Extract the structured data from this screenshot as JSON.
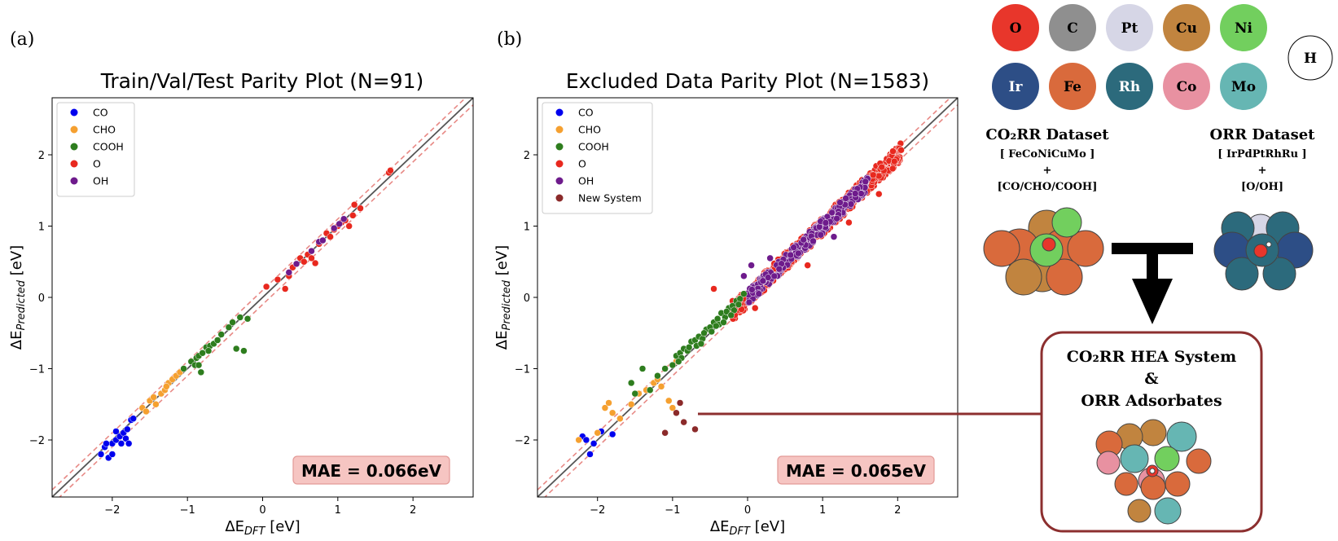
{
  "panels": [
    {
      "label": "(a)"
    },
    {
      "label": "(b)"
    }
  ],
  "chart_data": [
    {
      "type": "scatter",
      "title": "Train/Val/Test Parity Plot (N=91)",
      "xlabel_main": "ΔE",
      "xlabel_sub": "DFT",
      "xlabel_unit": " [eV]",
      "ylabel_main": "ΔE",
      "ylabel_sub": "Predicted",
      "ylabel_unit": " [eV]",
      "xlim": [
        -2.8,
        2.8
      ],
      "ylim": [
        -2.8,
        2.8
      ],
      "xticks": [
        -2,
        -1,
        0,
        1,
        2
      ],
      "yticks": [
        -2,
        -1,
        0,
        1,
        2
      ],
      "tick_labels": [
        "−2",
        "−1",
        "0",
        "1",
        "2"
      ],
      "parity_band": 0.1,
      "mae_label": "MAE = 0.066eV",
      "series": [
        {
          "name": "CO",
          "color": "#0000ee",
          "points": [
            [
              -2.15,
              -2.2
            ],
            [
              -2.1,
              -2.1
            ],
            [
              -2.05,
              -2.25
            ],
            [
              -2.0,
              -2.05
            ],
            [
              -2.0,
              -2.2
            ],
            [
              -1.95,
              -2.0
            ],
            [
              -1.9,
              -1.95
            ],
            [
              -1.88,
              -2.05
            ],
            [
              -1.85,
              -1.9
            ],
            [
              -1.82,
              -1.98
            ],
            [
              -1.8,
              -1.85
            ],
            [
              -1.78,
              -2.05
            ],
            [
              -1.75,
              -1.72
            ],
            [
              -1.72,
              -1.7
            ],
            [
              -2.08,
              -2.05
            ],
            [
              -1.95,
              -1.88
            ]
          ]
        },
        {
          "name": "CHO",
          "color": "#f5a030",
          "points": [
            [
              -1.6,
              -1.55
            ],
            [
              -1.55,
              -1.6
            ],
            [
              -1.5,
              -1.45
            ],
            [
              -1.45,
              -1.4
            ],
            [
              -1.42,
              -1.5
            ],
            [
              -1.35,
              -1.35
            ],
            [
              -1.3,
              -1.3
            ],
            [
              -1.25,
              -1.2
            ],
            [
              -1.2,
              -1.15
            ],
            [
              -1.15,
              -1.1
            ],
            [
              -1.1,
              -1.05
            ],
            [
              -1.28,
              -1.25
            ]
          ]
        },
        {
          "name": "COOH",
          "color": "#2e7d1e",
          "points": [
            [
              -1.05,
              -1.0
            ],
            [
              -0.95,
              -0.9
            ],
            [
              -0.9,
              -0.95
            ],
            [
              -0.88,
              -0.85
            ],
            [
              -0.85,
              -0.82
            ],
            [
              -0.82,
              -1.05
            ],
            [
              -0.8,
              -0.78
            ],
            [
              -0.75,
              -0.7
            ],
            [
              -0.7,
              -0.68
            ],
            [
              -0.65,
              -0.65
            ],
            [
              -0.6,
              -0.6
            ],
            [
              -0.55,
              -0.52
            ],
            [
              -0.45,
              -0.42
            ],
            [
              -0.4,
              -0.35
            ],
            [
              -0.35,
              -0.72
            ],
            [
              -0.3,
              -0.28
            ],
            [
              -0.25,
              -0.75
            ],
            [
              -0.2,
              -0.3
            ],
            [
              -0.85,
              -0.95
            ],
            [
              -0.72,
              -0.75
            ]
          ]
        },
        {
          "name": "O",
          "color": "#e8281e",
          "points": [
            [
              0.05,
              0.15
            ],
            [
              0.2,
              0.25
            ],
            [
              0.3,
              0.12
            ],
            [
              0.35,
              0.3
            ],
            [
              0.4,
              0.42
            ],
            [
              0.5,
              0.55
            ],
            [
              0.55,
              0.5
            ],
            [
              0.6,
              0.6
            ],
            [
              0.7,
              0.48
            ],
            [
              0.75,
              0.75
            ],
            [
              0.85,
              0.9
            ],
            [
              0.9,
              0.85
            ],
            [
              0.95,
              0.95
            ],
            [
              1.0,
              1.0
            ],
            [
              1.05,
              1.05
            ],
            [
              1.1,
              1.08
            ],
            [
              1.15,
              1.0
            ],
            [
              1.2,
              1.15
            ],
            [
              1.3,
              1.25
            ],
            [
              1.68,
              1.75
            ],
            [
              1.7,
              1.78
            ],
            [
              0.65,
              0.55
            ],
            [
              1.22,
              1.3
            ]
          ]
        },
        {
          "name": "OH",
          "color": "#6e1b8c",
          "points": [
            [
              0.35,
              0.35
            ],
            [
              0.45,
              0.47
            ],
            [
              0.65,
              0.65
            ],
            [
              0.75,
              0.78
            ],
            [
              0.8,
              0.8
            ],
            [
              0.95,
              0.97
            ],
            [
              1.02,
              1.03
            ],
            [
              1.08,
              1.1
            ]
          ]
        }
      ]
    },
    {
      "type": "scatter",
      "title": "Excluded Data Parity Plot (N=1583)",
      "xlabel_main": "ΔE",
      "xlabel_sub": "DFT",
      "xlabel_unit": " [eV]",
      "ylabel_main": "ΔE",
      "ylabel_sub": "Predicted",
      "ylabel_unit": " [eV]",
      "xlim": [
        -2.8,
        2.8
      ],
      "ylim": [
        -2.8,
        2.8
      ],
      "xticks": [
        -2,
        -1,
        0,
        1,
        2
      ],
      "yticks": [
        -2,
        -1,
        0,
        1,
        2
      ],
      "tick_labels": [
        "−2",
        "−1",
        "0",
        "1",
        "2"
      ],
      "parity_band": 0.1,
      "mae_label": "MAE = 0.065eV",
      "series": [
        {
          "name": "CO",
          "color": "#0000ee",
          "points": [
            [
              -2.2,
              -1.95
            ],
            [
              -2.1,
              -2.2
            ],
            [
              -2.05,
              -2.05
            ],
            [
              -1.95,
              -1.88
            ],
            [
              -1.8,
              -1.92
            ],
            [
              -2.15,
              -2.0
            ]
          ]
        },
        {
          "name": "CHO",
          "color": "#f5a030",
          "points": [
            [
              -2.25,
              -2.0
            ],
            [
              -2.0,
              -1.9
            ],
            [
              -1.9,
              -1.55
            ],
            [
              -1.85,
              -1.48
            ],
            [
              -1.8,
              -1.62
            ],
            [
              -1.7,
              -1.7
            ],
            [
              -1.55,
              -1.5
            ],
            [
              -1.45,
              -1.35
            ],
            [
              -1.35,
              -1.3
            ],
            [
              -1.25,
              -1.2
            ],
            [
              -1.2,
              -1.15
            ],
            [
              -1.15,
              -1.25
            ],
            [
              -1.05,
              -1.45
            ],
            [
              -1.0,
              -1.55
            ],
            [
              -0.95,
              -0.9
            ]
          ]
        },
        {
          "name": "COOH",
          "color": "#2e7d1e",
          "points": [
            [
              -1.55,
              -1.2
            ],
            [
              -1.5,
              -1.35
            ],
            [
              -1.4,
              -1.0
            ],
            [
              -1.3,
              -1.3
            ],
            [
              -1.2,
              -1.1
            ],
            [
              -1.1,
              -1.0
            ],
            [
              -1.0,
              -0.95
            ],
            [
              -0.95,
              -0.82
            ],
            [
              -0.9,
              -0.78
            ],
            [
              -0.85,
              -0.72
            ],
            [
              -0.8,
              -0.75
            ],
            [
              -0.75,
              -0.62
            ],
            [
              -0.7,
              -0.6
            ],
            [
              -0.65,
              -0.55
            ],
            [
              -0.6,
              -0.58
            ],
            [
              -0.55,
              -0.45
            ],
            [
              -0.5,
              -0.42
            ],
            [
              -0.45,
              -0.35
            ],
            [
              -0.4,
              -0.3
            ],
            [
              -0.35,
              -0.22
            ],
            [
              -0.3,
              -0.28
            ],
            [
              -0.25,
              -0.15
            ],
            [
              -0.2,
              -0.12
            ],
            [
              -0.15,
              -0.05
            ],
            [
              -0.1,
              -0.02
            ],
            [
              -0.05,
              0.05
            ],
            [
              -0.88,
              -0.85
            ],
            [
              -0.78,
              -0.7
            ],
            [
              -0.68,
              -0.68
            ],
            [
              -0.58,
              -0.5
            ],
            [
              -0.48,
              -0.48
            ],
            [
              -0.38,
              -0.38
            ],
            [
              -0.28,
              -0.2
            ],
            [
              -0.18,
              -0.18
            ],
            [
              -0.92,
              -0.9
            ],
            [
              -0.62,
              -0.65
            ],
            [
              -0.42,
              -0.4
            ],
            [
              -0.32,
              -0.35
            ],
            [
              -0.22,
              -0.25
            ],
            [
              -0.12,
              -0.1
            ]
          ]
        },
        {
          "name": "O",
          "color": "#e8281e",
          "points": []
        },
        {
          "name": "OH",
          "color": "#6e1b8c",
          "points": []
        },
        {
          "name": "New System",
          "color": "#8b2a2a",
          "points": [
            [
              -1.1,
              -1.9
            ],
            [
              -0.95,
              -1.62
            ],
            [
              -0.9,
              -1.48
            ],
            [
              -0.85,
              -1.75
            ],
            [
              -0.7,
              -1.85
            ]
          ]
        }
      ],
      "trend_O": {
        "range": [
          -0.2,
          2.05
        ],
        "spread": 0.13,
        "extra": [
          [
            -0.45,
            0.12
          ],
          [
            -0.2,
            -0.05
          ],
          [
            1.75,
            1.45
          ],
          [
            1.5,
            1.55
          ],
          [
            0.1,
            -0.15
          ],
          [
            0.8,
            0.45
          ],
          [
            1.35,
            1.05
          ]
        ]
      },
      "trend_OH": {
        "range": [
          0.0,
          1.6
        ],
        "spread": 0.1,
        "extra": [
          [
            0.05,
            0.45
          ],
          [
            -0.05,
            0.3
          ],
          [
            0.15,
            0.05
          ],
          [
            0.3,
            0.55
          ],
          [
            1.15,
            0.85
          ]
        ]
      }
    }
  ],
  "elements": {
    "row1": [
      {
        "symbol": "O",
        "color": "#e8362b"
      },
      {
        "symbol": "C",
        "color": "#8f8f8f"
      },
      {
        "symbol": "Pt",
        "color": "#d6d6e6"
      },
      {
        "symbol": "Cu",
        "color": "#c1843f"
      },
      {
        "symbol": "Ni",
        "color": "#72cf5e"
      }
    ],
    "row2": [
      {
        "symbol": "Ir",
        "color": "#2d4e86"
      },
      {
        "symbol": "Fe",
        "color": "#d96a3c"
      },
      {
        "symbol": "Rh",
        "color": "#2c6a7c"
      },
      {
        "symbol": "Co",
        "color": "#e891a1"
      },
      {
        "symbol": "Mo",
        "color": "#66b6b3"
      }
    ],
    "extra": {
      "symbol": "H",
      "color": "#ffffff"
    }
  },
  "datasets": {
    "co2rr": {
      "title": "CO₂RR Dataset",
      "line1": "[ FeCoNiCuMo ]",
      "plus": "+",
      "line2": "[CO/CHO/COOH]"
    },
    "orr": {
      "title": "ORR Dataset",
      "line1": "[ IrPdPtRhRu ]",
      "plus": "+",
      "line2": "[O/OH]"
    }
  },
  "hea_box": {
    "line1": "CO₂RR HEA System",
    "line2": "&",
    "line3": "ORR Adsorbates",
    "border_color": "#8c2f2f"
  }
}
